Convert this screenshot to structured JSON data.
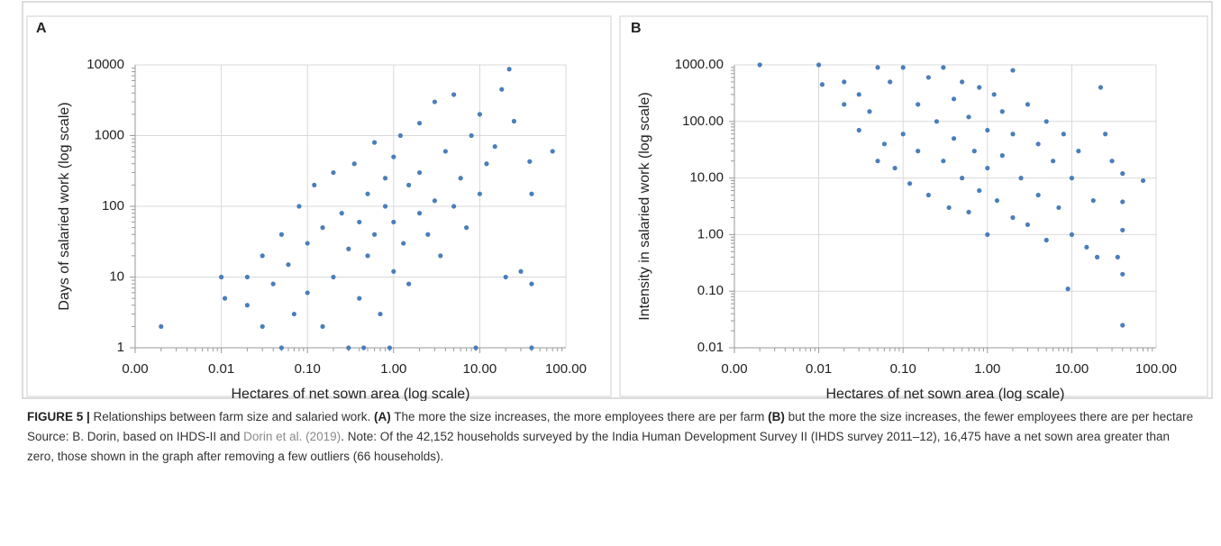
{
  "chart_data": [
    {
      "type": "scatter",
      "label": "A",
      "xlabel": "Hectares of net sown area (log scale)",
      "ylabel": "Days of salaried work (log scale)",
      "xscale": "log",
      "yscale": "log",
      "grid": true,
      "color": "#4a7ebb",
      "xlim": [
        0.001,
        100
      ],
      "xticks": [
        {
          "value": 0.001,
          "label": "0.00"
        },
        {
          "value": 0.01,
          "label": "0.01"
        },
        {
          "value": 0.1,
          "label": "0.10"
        },
        {
          "value": 1,
          "label": "1.00"
        },
        {
          "value": 10,
          "label": "10.00"
        },
        {
          "value": 100,
          "label": "100.00"
        }
      ],
      "ylim": [
        1,
        10000
      ],
      "yticks": [
        1,
        10,
        100,
        1000,
        10000
      ],
      "x": [
        0.002,
        0.01,
        0.011,
        0.02,
        0.02,
        0.03,
        0.03,
        0.04,
        0.05,
        0.05,
        0.06,
        0.07,
        0.08,
        0.1,
        0.1,
        0.12,
        0.15,
        0.15,
        0.2,
        0.2,
        0.25,
        0.3,
        0.3,
        0.35,
        0.4,
        0.4,
        0.5,
        0.5,
        0.6,
        0.6,
        0.7,
        0.8,
        0.8,
        1,
        1,
        1,
        1.2,
        1.3,
        1.5,
        1.5,
        2,
        2,
        2,
        2.5,
        3,
        3,
        3.5,
        4,
        5,
        5,
        6,
        7,
        8,
        9,
        10,
        10,
        12,
        15,
        18,
        20,
        22,
        25,
        30,
        38,
        40,
        40,
        40,
        70,
        0.45,
        0.9
      ],
      "values": [
        2,
        10,
        5,
        4,
        10,
        2,
        20,
        8,
        1,
        40,
        15,
        3,
        100,
        30,
        6,
        200,
        50,
        2,
        10,
        300,
        80,
        25,
        1,
        400,
        60,
        5,
        150,
        20,
        800,
        40,
        3,
        100,
        250,
        60,
        12,
        500,
        1000,
        30,
        200,
        8,
        80,
        1500,
        300,
        40,
        120,
        3000,
        20,
        600,
        100,
        3800,
        250,
        50,
        1000,
        1,
        2000,
        150,
        400,
        700,
        4500,
        10,
        8700,
        1600,
        12,
        430,
        150,
        8,
        1,
        600,
        1,
        1
      ]
    },
    {
      "type": "scatter",
      "label": "B",
      "xlabel": "Hectares of net sown area (log scale)",
      "ylabel": "Intensity in salaried work (log scale)",
      "xscale": "log",
      "yscale": "log",
      "grid": true,
      "color": "#4a7ebb",
      "xlim": [
        0.001,
        100
      ],
      "xticks": [
        {
          "value": 0.001,
          "label": "0.00"
        },
        {
          "value": 0.01,
          "label": "0.01"
        },
        {
          "value": 0.1,
          "label": "0.10"
        },
        {
          "value": 1,
          "label": "1.00"
        },
        {
          "value": 10,
          "label": "10.00"
        },
        {
          "value": 100,
          "label": "100.00"
        }
      ],
      "ylim": [
        0.01,
        1000
      ],
      "yticks": [
        {
          "value": 0.01,
          "label": "0.01"
        },
        {
          "value": 0.1,
          "label": "0.10"
        },
        {
          "value": 1,
          "label": "1.00"
        },
        {
          "value": 10,
          "label": "10.00"
        },
        {
          "value": 100,
          "label": "100.00"
        },
        {
          "value": 1000,
          "label": "1000.00"
        }
      ],
      "x": [
        0.002,
        0.01,
        0.011,
        0.02,
        0.02,
        0.03,
        0.03,
        0.04,
        0.05,
        0.05,
        0.06,
        0.07,
        0.08,
        0.1,
        0.1,
        0.12,
        0.15,
        0.15,
        0.2,
        0.2,
        0.25,
        0.3,
        0.3,
        0.35,
        0.4,
        0.4,
        0.5,
        0.5,
        0.6,
        0.6,
        0.7,
        0.8,
        0.8,
        1,
        1,
        1,
        1.2,
        1.3,
        1.5,
        1.5,
        2,
        2,
        2,
        2.5,
        3,
        3,
        4,
        4,
        5,
        5,
        6,
        7,
        8,
        9,
        10,
        10,
        12,
        15,
        18,
        20,
        22,
        25,
        30,
        35,
        40,
        40,
        40,
        40,
        40,
        70
      ],
      "values": [
        1000,
        1000,
        450,
        200,
        500,
        70,
        300,
        150,
        20,
        900,
        40,
        500,
        15,
        900,
        60,
        8,
        200,
        30,
        600,
        5,
        100,
        20,
        900,
        3,
        250,
        50,
        10,
        500,
        2.5,
        120,
        30,
        400,
        6,
        70,
        1,
        15,
        300,
        4,
        150,
        25,
        800,
        2,
        60,
        10,
        200,
        1.5,
        40,
        5,
        100,
        0.8,
        20,
        3,
        60,
        0.11,
        10,
        1,
        30,
        0.6,
        4,
        0.4,
        400,
        60,
        20,
        0.4,
        12,
        3.8,
        1.2,
        0.2,
        0.025,
        9
      ]
    }
  ],
  "caption": {
    "label": "FIGURE 5 |",
    "t1": " Relationships between farm size and salaried work. ",
    "a": "(A)",
    "t2": " The more the size increases, the more employees there are per farm ",
    "b": "(B)",
    "t3": " but the more the size increases, the fewer employees there are per hectare Source: B. Dorin, based on IHDS-II and ",
    "link": "Dorin et al. (2019)",
    "t4": ". Note: Of the 42,152 households surveyed by the India Human Development Survey II (IHDS survey 2011–12), 16,475 have a net sown area greater than zero, those shown in the graph after removing a few outliers (66 households)."
  }
}
